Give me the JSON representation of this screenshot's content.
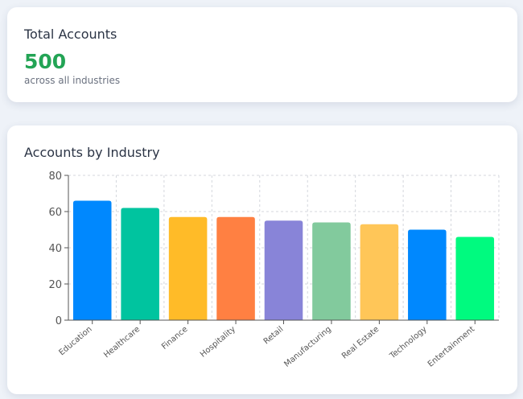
{
  "summary": {
    "title": "Total Accounts",
    "value": "500",
    "subtitle": "across all industries"
  },
  "chart_card": {
    "title": "Accounts by Industry"
  },
  "chart_data": {
    "type": "bar",
    "categories": [
      "Education",
      "Healthcare",
      "Finance",
      "Hospitality",
      "Retail",
      "Manufacturing",
      "Real Estate",
      "Technology",
      "Entertainment"
    ],
    "values": [
      66,
      62,
      57,
      57,
      55,
      54,
      53,
      50,
      46
    ],
    "colors": [
      "#0088fe",
      "#00c49f",
      "#ffbb28",
      "#ff8042",
      "#8884d8",
      "#82ca9d",
      "#ffc658",
      "#0088fe",
      "#00fa7f"
    ],
    "yticks": [
      0,
      20,
      40,
      60,
      80
    ],
    "ylim": [
      0,
      80
    ],
    "grid": true
  }
}
